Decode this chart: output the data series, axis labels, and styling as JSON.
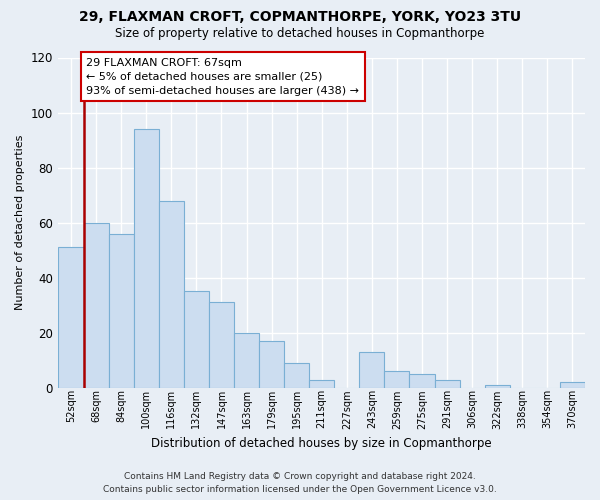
{
  "title": "29, FLAXMAN CROFT, COPMANTHORPE, YORK, YO23 3TU",
  "subtitle": "Size of property relative to detached houses in Copmanthorpe",
  "xlabel": "Distribution of detached houses by size in Copmanthorpe",
  "ylabel": "Number of detached properties",
  "bar_color": "#ccddf0",
  "bar_edge_color": "#7aafd4",
  "categories": [
    "52sqm",
    "68sqm",
    "84sqm",
    "100sqm",
    "116sqm",
    "132sqm",
    "147sqm",
    "163sqm",
    "179sqm",
    "195sqm",
    "211sqm",
    "227sqm",
    "243sqm",
    "259sqm",
    "275sqm",
    "291sqm",
    "306sqm",
    "322sqm",
    "338sqm",
    "354sqm",
    "370sqm"
  ],
  "values": [
    51,
    60,
    56,
    94,
    68,
    35,
    31,
    20,
    17,
    9,
    3,
    0,
    13,
    6,
    5,
    3,
    0,
    1,
    0,
    0,
    2
  ],
  "ylim": [
    0,
    120
  ],
  "yticks": [
    0,
    20,
    40,
    60,
    80,
    100,
    120
  ],
  "annotation_line1": "29 FLAXMAN CROFT: 67sqm",
  "annotation_line2": "← 5% of detached houses are smaller (25)",
  "annotation_line3": "93% of semi-detached houses are larger (438) →",
  "annotation_box_color": "#ffffff",
  "annotation_box_edge_color": "#cc0000",
  "vline_color": "#aa0000",
  "footer_line1": "Contains HM Land Registry data © Crown copyright and database right 2024.",
  "footer_line2": "Contains public sector information licensed under the Open Government Licence v3.0.",
  "background_color": "#e8eef5",
  "grid_color": "#ffffff"
}
